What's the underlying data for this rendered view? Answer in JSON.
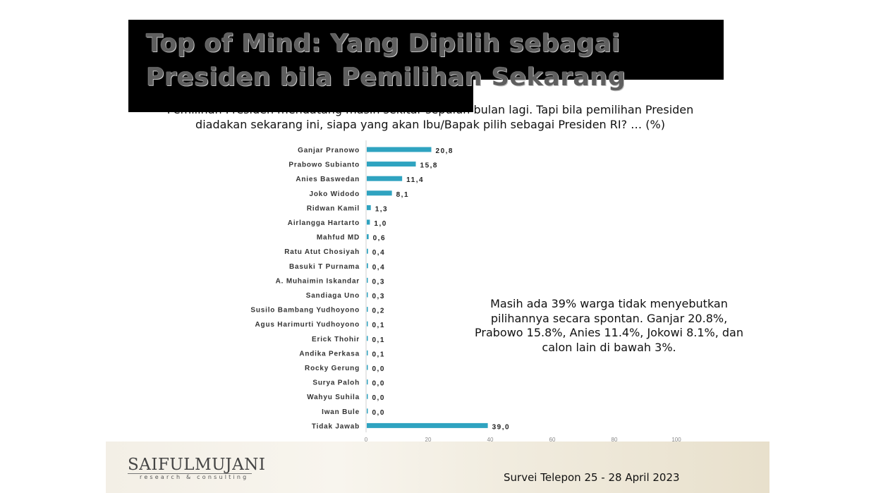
{
  "slide": {
    "title": "Top of Mind: Yang Dipilih sebagai Presiden bila Pemilihan Sekarang",
    "question": "Pemilihan Presiden mendatang masih sekitar sepuluh bulan lagi. Tapi bila pemilihan Presiden diadakan sekarang ini, siapa yang akan Ibu/Bapak pilih sebagai Presiden RI? … (%)",
    "note": "Masih ada 39% warga tidak menyebutkan pilihannya secara spontan. Ganjar 20.8%, Prabowo 15.8%, Anies 11.4%, Jokowi 8.1%, dan calon lain di bawah 3%.",
    "logo_main": "SAIFULMUJANI",
    "logo_sub": "research & consulting",
    "survey": "Survei Telepon 25 -  28 April 2023"
  },
  "chart_data": {
    "type": "bar",
    "orientation": "horizontal",
    "categories": [
      "Ganjar Pranowo",
      "Prabowo Subianto",
      "Anies Baswedan",
      "Joko Widodo",
      "Ridwan Kamil",
      "Airlangga Hartarto",
      "Mahfud MD",
      "Ratu Atut Chosiyah",
      "Basuki T Purnama",
      "A. Muhaimin Iskandar",
      "Sandiaga Uno",
      "Susilo Bambang Yudhoyono",
      "Agus Harimurti Yudhoyono",
      "Erick Thohir",
      "Andika Perkasa",
      "Rocky Gerung",
      "Surya Paloh",
      "Wahyu Suhila",
      "Iwan Bule",
      "Tidak Jawab"
    ],
    "values": [
      20.8,
      15.8,
      11.4,
      8.1,
      1.3,
      1.0,
      0.6,
      0.4,
      0.4,
      0.3,
      0.3,
      0.2,
      0.1,
      0.1,
      0.1,
      0.0,
      0.0,
      0.0,
      0.0,
      39.0
    ],
    "value_labels": [
      "20,8",
      "15,8",
      "11,4",
      "8,1",
      "1,3",
      "1,0",
      "0,6",
      "0,4",
      "0,4",
      "0,3",
      "0,3",
      "0,2",
      "0,1",
      "0,1",
      "0,1",
      "0,0",
      "0,0",
      "0,0",
      "0,0",
      "39,0"
    ],
    "xticks": [
      0,
      20,
      40,
      60,
      80,
      100
    ],
    "xlim": [
      0,
      100
    ],
    "bar_color": "#2fa3c0",
    "grid": false
  }
}
